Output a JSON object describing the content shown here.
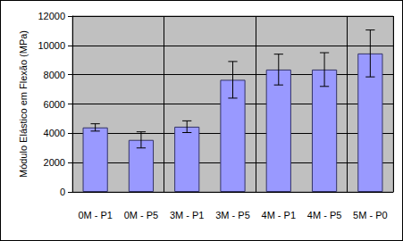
{
  "chart_data": {
    "type": "bar",
    "y_label": "Módulo Elástico em Flexão (MPa)",
    "categories": [
      "0M - P1",
      "0M - P5",
      "3M - P1",
      "3M - P5",
      "4M - P1",
      "4M - P5",
      "5M - P0"
    ],
    "values": [
      4400,
      3550,
      4450,
      7650,
      8350,
      8350,
      9450
    ],
    "errors": [
      250,
      550,
      400,
      1250,
      1050,
      1150,
      1600
    ],
    "color": "#9999ff",
    "ylim": [
      0,
      12000
    ],
    "yticks": [
      0,
      2000,
      4000,
      6000,
      8000,
      10000,
      12000
    ],
    "grid": true
  }
}
